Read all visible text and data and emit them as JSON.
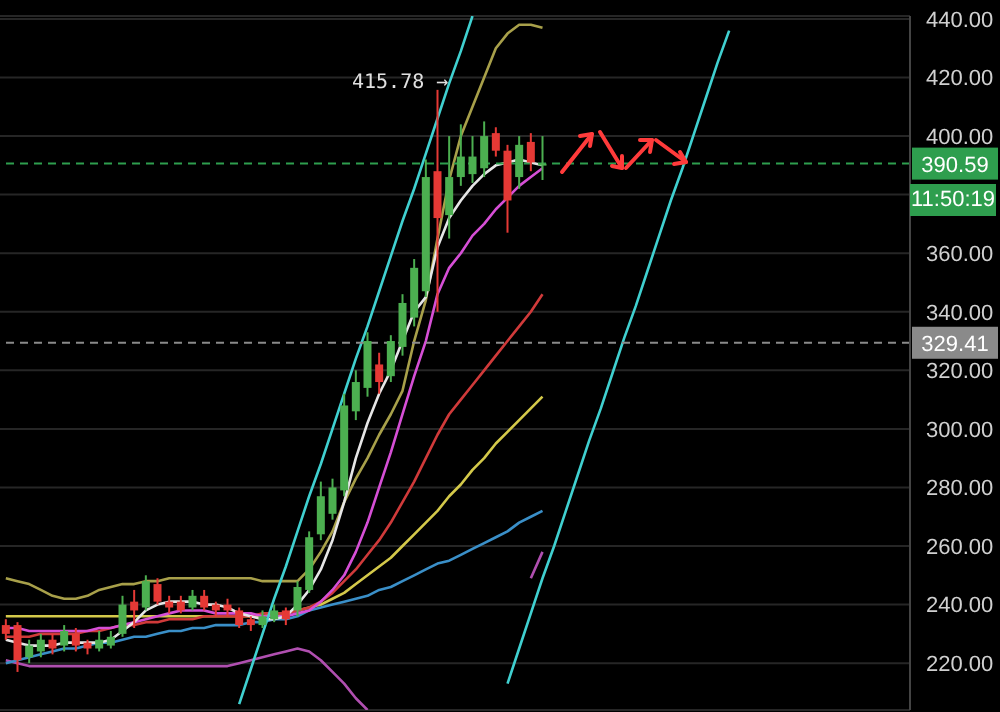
{
  "chart_data": {
    "type": "candlestick",
    "categories": [
      null,
      null,
      null,
      null,
      null,
      null,
      null,
      null,
      null,
      null,
      null,
      null,
      null,
      null,
      null,
      null,
      null,
      null,
      null,
      null,
      null,
      null,
      null,
      null,
      null,
      null,
      null,
      null,
      null,
      null,
      null,
      null,
      null,
      null,
      null,
      null,
      null,
      null,
      null,
      null,
      null,
      null,
      null,
      null,
      null,
      null,
      null,
      null,
      null,
      null,
      null,
      null,
      null,
      null,
      null,
      null,
      null,
      null,
      null,
      null,
      null,
      null,
      null,
      null,
      null,
      null,
      null,
      null,
      null,
      null,
      null,
      null,
      null,
      null,
      null,
      null,
      null,
      null
    ],
    "ohlc": [
      [
        233,
        235,
        228,
        230
      ],
      [
        233,
        234,
        217,
        221
      ],
      [
        222,
        228,
        220,
        226
      ],
      [
        224,
        230,
        222,
        228
      ],
      [
        228,
        230,
        223,
        225
      ],
      [
        226,
        233,
        224,
        231
      ],
      [
        230,
        232,
        224,
        226
      ],
      [
        227,
        228,
        223,
        225
      ],
      [
        225,
        231,
        224,
        228
      ],
      [
        226,
        231,
        225,
        229
      ],
      [
        230,
        243,
        229,
        240
      ],
      [
        241,
        245,
        232,
        238
      ],
      [
        239,
        250,
        238,
        248
      ],
      [
        247,
        249,
        240,
        241
      ],
      [
        241,
        243,
        237,
        239
      ],
      [
        241,
        243,
        237,
        238
      ],
      [
        239,
        245,
        238,
        243
      ],
      [
        243,
        245,
        238,
        239
      ],
      [
        240,
        241,
        236,
        238
      ],
      [
        240,
        242,
        236,
        238
      ],
      [
        238,
        239,
        232,
        233
      ],
      [
        235,
        236,
        231,
        233
      ],
      [
        233,
        238,
        232,
        236
      ],
      [
        235,
        240,
        234,
        238
      ],
      [
        238,
        239,
        233,
        235
      ],
      [
        238,
        248,
        236,
        246
      ],
      [
        245,
        265,
        244,
        263
      ],
      [
        264,
        282,
        262,
        277
      ],
      [
        271,
        283,
        269,
        280
      ],
      [
        279,
        312,
        277,
        308
      ],
      [
        306,
        320,
        303,
        316
      ],
      [
        314,
        333,
        311,
        330
      ],
      [
        322,
        326,
        312,
        316
      ],
      [
        318,
        332,
        316,
        330
      ],
      [
        328,
        346,
        325,
        343
      ],
      [
        338,
        358,
        335,
        355
      ],
      [
        347,
        392,
        345,
        386
      ],
      [
        388,
        415.78,
        340,
        372
      ],
      [
        373,
        400,
        365,
        386
      ],
      [
        386,
        404,
        383,
        393
      ],
      [
        387,
        400,
        384,
        393
      ],
      [
        389,
        405,
        386,
        400
      ],
      [
        401,
        403,
        393,
        395
      ],
      [
        395,
        397,
        367,
        378
      ],
      [
        386,
        400,
        382,
        397
      ],
      [
        398,
        401,
        388,
        391
      ],
      [
        390,
        400,
        385,
        390.59
      ],
      null,
      null,
      null,
      null,
      null,
      null,
      null,
      null,
      null,
      null,
      null,
      null,
      null,
      null,
      null,
      null,
      null,
      null,
      null,
      null,
      null,
      null,
      null,
      null,
      null,
      null,
      null,
      null,
      null,
      null,
      null
    ],
    "series": [
      {
        "type": "line",
        "color": "#a8a04a",
        "values": [
          249,
          248,
          247,
          245,
          243,
          242,
          242,
          243,
          245,
          246,
          247,
          247,
          248,
          248,
          249,
          249,
          249,
          249,
          249,
          249,
          249,
          249,
          248,
          248,
          248,
          248,
          252,
          258,
          265,
          275,
          283,
          290,
          298,
          305,
          313,
          330,
          344,
          365,
          385,
          400,
          410,
          420,
          430,
          435,
          438,
          438,
          437,
          null,
          null,
          null,
          null,
          null,
          null,
          null,
          null,
          null,
          null,
          null,
          null,
          null,
          null,
          null,
          null,
          null,
          null,
          null,
          null,
          null,
          null,
          null,
          null,
          null,
          null,
          null,
          null,
          null,
          null,
          null
        ]
      },
      {
        "type": "line",
        "color": "#b04fb0",
        "values": [
          221,
          220,
          219,
          219,
          219,
          219,
          219,
          219,
          219,
          219,
          219,
          219,
          219,
          219,
          219,
          219,
          219,
          219,
          219,
          219,
          220,
          221,
          222,
          223,
          224,
          225,
          224,
          221,
          217,
          213,
          208,
          204,
          null,
          null,
          null,
          null,
          null,
          null,
          null,
          null,
          null,
          null,
          null,
          null,
          null,
          249,
          258,
          null,
          null,
          null,
          null,
          null,
          null,
          null,
          null,
          null,
          null,
          null,
          null,
          null,
          null,
          null,
          null,
          null,
          null,
          null,
          null,
          null,
          null,
          null,
          null,
          null,
          null,
          null,
          null,
          null,
          null,
          null
        ]
      },
      {
        "type": "line",
        "color": "#3a8fc8",
        "values": [
          220,
          221,
          222,
          223,
          224,
          225,
          225,
          226,
          227,
          227,
          228,
          229,
          229,
          230,
          231,
          231,
          232,
          232,
          233,
          233,
          233,
          234,
          234,
          235,
          235,
          236,
          238,
          239,
          240,
          241,
          242,
          243,
          245,
          246,
          248,
          250,
          252,
          254,
          255,
          257,
          259,
          261,
          263,
          265,
          268,
          270,
          272,
          null,
          null,
          null,
          null,
          null,
          null,
          null,
          null,
          null,
          null,
          null,
          null,
          null,
          null,
          null,
          null,
          null,
          null,
          null,
          null,
          null,
          null,
          null,
          null,
          null,
          null,
          null,
          null,
          null,
          null,
          null
        ]
      },
      {
        "type": "line",
        "color": "#d4c94a",
        "values": [
          236,
          236,
          236,
          236,
          236,
          236,
          236,
          236,
          236,
          236,
          236,
          236,
          236,
          236,
          236,
          236,
          236,
          236,
          236,
          236,
          236,
          236,
          236,
          237,
          237,
          238,
          239,
          240,
          242,
          244,
          247,
          250,
          253,
          256,
          260,
          264,
          268,
          272,
          277,
          281,
          286,
          290,
          295,
          299,
          303,
          307,
          311,
          null,
          null,
          null,
          null,
          null,
          null,
          null,
          null,
          null,
          null,
          null,
          null,
          null,
          null,
          null,
          null,
          null,
          null,
          null,
          null,
          null,
          null,
          null,
          null,
          null,
          null,
          null,
          null,
          null,
          null,
          null
        ]
      },
      {
        "type": "line",
        "color": "#d03a3a",
        "values": [
          229,
          229,
          229,
          230,
          230,
          230,
          230,
          231,
          231,
          232,
          233,
          233,
          234,
          234,
          235,
          235,
          235,
          236,
          236,
          236,
          236,
          236,
          237,
          237,
          237,
          238,
          239,
          241,
          244,
          248,
          252,
          257,
          262,
          268,
          275,
          282,
          290,
          298,
          305,
          310,
          315,
          320,
          325,
          330,
          335,
          340,
          346,
          null,
          null,
          null,
          null,
          null,
          null,
          null,
          null,
          null,
          null,
          null,
          null,
          null,
          null,
          null,
          null,
          null,
          null,
          null,
          null,
          null,
          null,
          null,
          null,
          null,
          null,
          null,
          null,
          null,
          null,
          null
        ]
      },
      {
        "type": "line",
        "color": "#d64fd6",
        "values": [
          232,
          232,
          231,
          231,
          231,
          231,
          231,
          231,
          232,
          232,
          233,
          234,
          235,
          236,
          237,
          238,
          238,
          238,
          237,
          237,
          237,
          237,
          236,
          236,
          236,
          237,
          238,
          241,
          245,
          250,
          258,
          268,
          280,
          292,
          305,
          318,
          330,
          346,
          355,
          360,
          366,
          370,
          375,
          379,
          383,
          386,
          389,
          null,
          null,
          null,
          null,
          null,
          null,
          null,
          null,
          null,
          null,
          null,
          null,
          null,
          null,
          null,
          null,
          null,
          null,
          null,
          null,
          null,
          null,
          null,
          null,
          null,
          null,
          null,
          null,
          null,
          null,
          null
        ]
      },
      {
        "type": "line",
        "color": "#e6e6e6",
        "values": [
          228,
          227,
          226,
          226,
          226,
          227,
          227,
          227,
          227,
          228,
          231,
          234,
          238,
          240,
          241,
          241,
          241,
          240,
          240,
          239,
          237,
          236,
          235,
          235,
          236,
          240,
          245,
          252,
          262,
          275,
          290,
          302,
          312,
          320,
          330,
          340,
          345,
          362,
          372,
          378,
          383,
          387,
          390,
          391,
          392,
          391,
          390,
          null,
          null,
          null,
          null,
          null,
          null,
          null,
          null,
          null,
          null,
          null,
          null,
          null,
          null,
          null,
          null,
          null,
          null,
          null,
          null,
          null,
          null,
          null,
          null,
          null,
          null,
          null,
          null,
          null,
          null,
          null
        ]
      },
      {
        "type": "line",
        "color": "#40d0d0",
        "values": [
          null,
          null,
          null,
          null,
          null,
          null,
          null,
          null,
          null,
          null,
          null,
          null,
          null,
          null,
          null,
          null,
          null,
          null,
          null,
          null,
          206,
          218,
          230,
          242,
          253,
          265,
          277,
          288,
          300,
          312,
          324,
          335,
          347,
          359,
          371,
          382,
          394,
          406,
          418,
          429,
          441,
          null,
          null,
          null,
          null,
          null,
          null,
          null,
          null,
          null,
          null,
          null,
          null,
          null,
          null,
          null,
          null,
          null,
          null,
          null,
          null,
          null,
          null,
          null,
          null,
          null,
          null,
          null,
          null,
          null,
          null,
          null,
          null,
          null,
          null,
          null,
          null,
          null
        ]
      },
      {
        "type": "line",
        "color": "#40d0d0",
        "values": [
          null,
          null,
          null,
          null,
          null,
          null,
          null,
          null,
          null,
          null,
          null,
          null,
          null,
          null,
          null,
          null,
          null,
          null,
          null,
          null,
          null,
          null,
          null,
          null,
          null,
          null,
          null,
          null,
          null,
          null,
          null,
          null,
          null,
          null,
          null,
          null,
          null,
          null,
          null,
          null,
          null,
          null,
          null,
          213,
          225,
          237,
          249,
          260,
          272,
          284,
          296,
          307,
          319,
          331,
          342,
          354,
          366,
          378,
          389,
          401,
          413,
          425,
          436,
          null,
          null,
          null,
          null,
          null,
          null,
          null,
          null,
          null,
          null,
          null,
          null,
          null,
          null,
          null
        ]
      }
    ],
    "ylim": [
      204,
      441
    ],
    "yticks": [
      {
        "value": 220,
        "label": "220.00"
      },
      {
        "value": 240,
        "label": "240.00"
      },
      {
        "value": 260,
        "label": "260.00"
      },
      {
        "value": 280,
        "label": "280.00"
      },
      {
        "value": 300,
        "label": "300.00"
      },
      {
        "value": 320,
        "label": "320.00"
      },
      {
        "value": 340,
        "label": "340.00"
      },
      {
        "value": 360,
        "label": "360.00"
      },
      {
        "value": 380,
        "label": null
      },
      {
        "value": 400,
        "label": "400.00"
      },
      {
        "value": 420,
        "label": "420.00"
      },
      {
        "value": 440,
        "label": "440.00"
      }
    ],
    "tick_labels": "y",
    "grid": "y",
    "ref_lines": [
      {
        "axis": "y",
        "value": 390.59,
        "label": "390.59",
        "color": "#2e9e4e",
        "line_style": "dashed"
      },
      {
        "axis": "y",
        "value": 329.41,
        "label": "329.41",
        "color": "#8a8a8a",
        "line_style": "dashed"
      }
    ],
    "annotations": [
      "415.78 →",
      "11:50:19"
    ]
  }
}
